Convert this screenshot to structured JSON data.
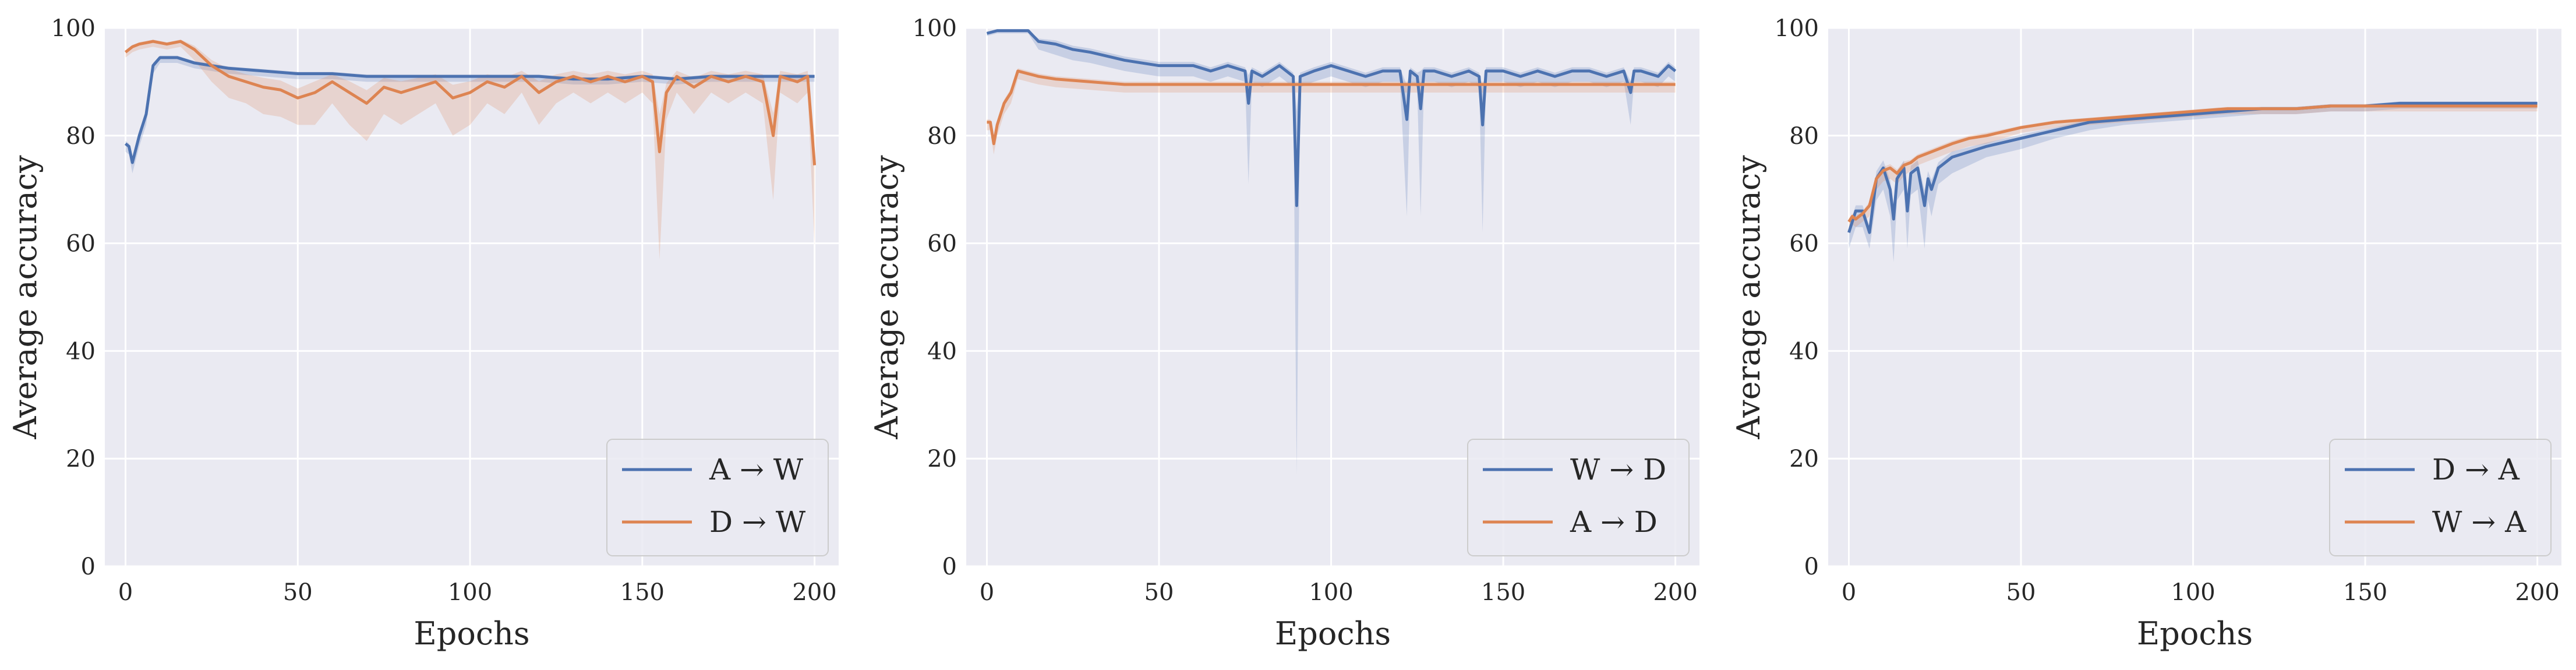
{
  "colors": {
    "blue": "#4c72b0",
    "orange": "#dd8452",
    "panel_bg": "#eaeaf2",
    "grid": "#ffffff"
  },
  "chart_data": [
    {
      "type": "line",
      "xlabel": "Epochs",
      "ylabel": "Average accuracy",
      "xlim": [
        -6,
        207
      ],
      "ylim": [
        0,
        100
      ],
      "xticks": [
        0,
        50,
        100,
        150,
        200
      ],
      "yticks": [
        0,
        20,
        40,
        60,
        80,
        100
      ],
      "grid": true,
      "legend_position": "lower-right",
      "series": [
        {
          "name": "A → W",
          "color": "#4c72b0",
          "x": [
            0,
            1,
            2,
            4,
            6,
            8,
            10,
            15,
            20,
            25,
            30,
            40,
            50,
            60,
            70,
            80,
            90,
            100,
            110,
            120,
            130,
            140,
            150,
            160,
            170,
            180,
            190,
            200
          ],
          "y": [
            78.5,
            78,
            75,
            80,
            84,
            93,
            94.5,
            94.5,
            93.5,
            93,
            92.5,
            92,
            91.5,
            91.5,
            91,
            91,
            91,
            91,
            91,
            91,
            90.5,
            90.5,
            91,
            90.5,
            91,
            91,
            91,
            91
          ],
          "band": [
            1.5,
            1.5,
            2,
            2,
            2,
            1.5,
            1,
            1,
            1,
            1,
            1,
            1,
            1,
            1,
            1,
            1,
            1,
            1,
            1,
            1,
            1,
            1,
            1,
            1,
            1,
            1,
            1,
            1
          ]
        },
        {
          "name": "D → W",
          "color": "#dd8452",
          "x": [
            0,
            2,
            4,
            8,
            12,
            16,
            20,
            25,
            30,
            35,
            40,
            45,
            50,
            55,
            60,
            65,
            70,
            75,
            80,
            85,
            90,
            95,
            100,
            105,
            110,
            115,
            120,
            125,
            130,
            135,
            140,
            145,
            150,
            153,
            155,
            157,
            160,
            165,
            170,
            175,
            180,
            185,
            188,
            190,
            195,
            198,
            200
          ],
          "y": [
            95.5,
            96.5,
            97,
            97.5,
            97,
            97.5,
            96,
            93,
            91,
            90,
            89,
            88.5,
            87,
            88,
            90,
            88,
            86,
            89,
            88,
            89,
            90,
            87,
            88,
            90,
            89,
            91,
            88,
            90,
            91,
            90,
            91,
            90,
            91,
            90,
            77,
            88,
            91,
            89,
            91,
            90,
            91,
            90,
            80,
            91,
            90,
            91,
            74.5
          ],
          "band": [
            1,
            1,
            1,
            1,
            1,
            1,
            2,
            3,
            4,
            4,
            5,
            5,
            5,
            6,
            4,
            6,
            7,
            5,
            6,
            5,
            4,
            7,
            6,
            4,
            5,
            3,
            6,
            4,
            3,
            4,
            3,
            4,
            3,
            4,
            20,
            5,
            3,
            5,
            3,
            4,
            3,
            4,
            12,
            3,
            4,
            3,
            15
          ]
        }
      ]
    },
    {
      "type": "line",
      "xlabel": "Epochs",
      "ylabel": "Average accuracy",
      "xlim": [
        -6,
        207
      ],
      "ylim": [
        0,
        100
      ],
      "xticks": [
        0,
        50,
        100,
        150,
        200
      ],
      "yticks": [
        0,
        20,
        40,
        60,
        80,
        100
      ],
      "grid": true,
      "legend_position": "lower-right",
      "series": [
        {
          "name": "W → D",
          "color": "#4c72b0",
          "x": [
            0,
            3,
            6,
            9,
            12,
            15,
            20,
            25,
            30,
            40,
            50,
            60,
            65,
            70,
            75,
            76,
            77,
            80,
            85,
            89,
            90,
            91,
            95,
            100,
            105,
            110,
            115,
            120,
            122,
            123,
            125,
            126,
            127,
            130,
            135,
            140,
            143,
            144,
            145,
            150,
            155,
            160,
            165,
            170,
            175,
            180,
            185,
            187,
            188,
            190,
            195,
            198,
            200
          ],
          "y": [
            99,
            99.5,
            99.5,
            99.5,
            99.5,
            97.5,
            97,
            96,
            95.5,
            94,
            93,
            93,
            92,
            93,
            92,
            86,
            92,
            91,
            93,
            91,
            67,
            91,
            92,
            93,
            92,
            91,
            92,
            92,
            83,
            92,
            91,
            85,
            92,
            92,
            91,
            92,
            91,
            82,
            92,
            92,
            91,
            92,
            91,
            92,
            92,
            91,
            92,
            88,
            92,
            92,
            91,
            93,
            92
          ],
          "band": [
            0.5,
            0.5,
            0.5,
            0.5,
            0.5,
            1.5,
            2,
            2,
            2,
            2,
            2,
            2,
            2,
            2,
            2,
            15,
            2,
            2,
            2,
            2,
            50,
            2,
            2,
            2,
            2,
            2,
            2,
            2,
            18,
            2,
            2,
            20,
            2,
            2,
            2,
            2,
            2,
            20,
            2,
            2,
            2,
            2,
            2,
            2,
            2,
            2,
            2,
            6,
            2,
            2,
            2,
            2,
            2
          ]
        },
        {
          "name": "A → D",
          "color": "#dd8452",
          "x": [
            0,
            1,
            2,
            3,
            5,
            7,
            9,
            12,
            15,
            20,
            30,
            40,
            50,
            60,
            70,
            80,
            90,
            100,
            110,
            120,
            130,
            140,
            150,
            160,
            170,
            180,
            190,
            200
          ],
          "y": [
            82.5,
            82.5,
            78.5,
            82,
            86,
            88,
            92,
            91.5,
            91,
            90.5,
            90,
            89.5,
            89.5,
            89.5,
            89.5,
            89.5,
            89.5,
            89.5,
            89.5,
            89.5,
            89.5,
            89.5,
            89.5,
            89.5,
            89.5,
            89.5,
            89.5,
            89.5
          ],
          "band": [
            1.5,
            1.5,
            2,
            2,
            2,
            2,
            1.5,
            1.5,
            1.5,
            1.5,
            1.5,
            1.5,
            1.5,
            1.5,
            1.5,
            1.5,
            1.5,
            1.5,
            1.5,
            1.5,
            1.5,
            1.5,
            1.5,
            1.5,
            1.5,
            1.5,
            1.5,
            1.5
          ]
        }
      ]
    },
    {
      "type": "line",
      "xlabel": "Epochs",
      "ylabel": "Average accuracy",
      "xlim": [
        -6,
        207
      ],
      "ylim": [
        0,
        100
      ],
      "xticks": [
        0,
        50,
        100,
        150,
        200
      ],
      "yticks": [
        0,
        20,
        40,
        60,
        80,
        100
      ],
      "grid": true,
      "legend_position": "lower-right",
      "series": [
        {
          "name": "D → A",
          "color": "#4c72b0",
          "x": [
            0,
            1,
            2,
            4,
            6,
            8,
            10,
            12,
            13,
            14,
            16,
            17,
            18,
            20,
            22,
            23,
            24,
            26,
            28,
            30,
            35,
            40,
            50,
            60,
            70,
            80,
            90,
            100,
            110,
            120,
            130,
            140,
            150,
            160,
            170,
            180,
            190,
            200
          ],
          "y": [
            62,
            64,
            66,
            66,
            62,
            72,
            74,
            70,
            64.5,
            72,
            74,
            66,
            73,
            74,
            67,
            72,
            70,
            74,
            75,
            76,
            77,
            78,
            79.5,
            81,
            82.5,
            83,
            83.5,
            84,
            84.5,
            85,
            85,
            85.5,
            85.5,
            86,
            86,
            86,
            86,
            86
          ],
          "band": [
            3,
            3,
            3,
            3,
            3,
            4,
            4,
            5,
            8,
            4,
            4,
            7,
            4,
            4,
            8,
            4,
            5,
            3,
            3,
            3,
            2.5,
            2,
            2,
            1.5,
            1.5,
            1,
            1,
            1,
            1,
            1,
            1,
            1,
            1,
            1,
            1,
            1,
            1,
            1
          ]
        },
        {
          "name": "W → A",
          "color": "#dd8452",
          "x": [
            0,
            1,
            2,
            4,
            6,
            8,
            10,
            12,
            14,
            16,
            18,
            20,
            22,
            24,
            26,
            28,
            30,
            35,
            40,
            50,
            60,
            70,
            80,
            90,
            100,
            110,
            120,
            130,
            140,
            150,
            160,
            170,
            180,
            190,
            200
          ],
          "y": [
            64,
            65,
            64.5,
            65.5,
            67,
            72,
            73.5,
            74,
            73,
            74.5,
            75,
            76,
            76.5,
            77,
            77.5,
            78,
            78.5,
            79.5,
            80,
            81.5,
            82.5,
            83,
            83.5,
            84,
            84.5,
            85,
            85,
            85,
            85.5,
            85.5,
            85.5,
            85.5,
            85.5,
            85.5,
            85.5
          ],
          "band": [
            1.5,
            1.5,
            1.5,
            1.5,
            2,
            2,
            2,
            2,
            2,
            2,
            1.5,
            1.5,
            1.5,
            1.5,
            1.5,
            1.5,
            1.5,
            1.5,
            1.5,
            1,
            1,
            1,
            1,
            1,
            1,
            1,
            1,
            1,
            1,
            1,
            1,
            1,
            1,
            1,
            1
          ]
        }
      ]
    }
  ]
}
